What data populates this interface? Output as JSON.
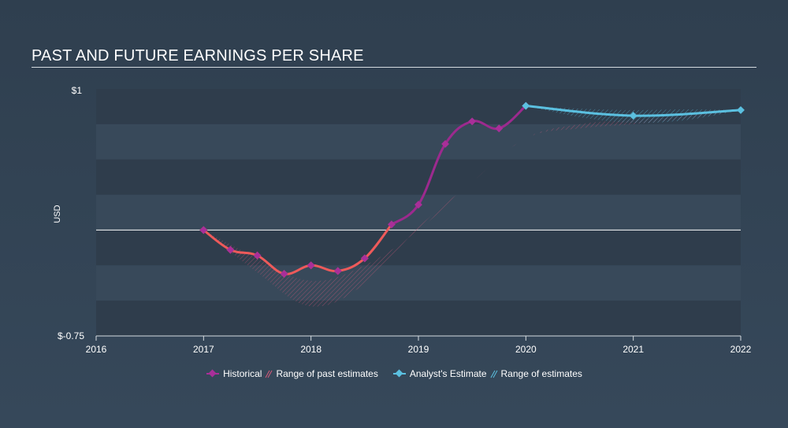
{
  "title": "PAST AND FUTURE EARNINGS PER SHARE",
  "legend": {
    "historical": "Historical",
    "past_range": "Range of past estimates",
    "analyst": "Analyst's Estimate",
    "future_range": "Range of estimates"
  },
  "colors": {
    "historical_line": "#9c2a8e",
    "historical_negative": "#ee5a5a",
    "historical_marker": "#a92f99",
    "analyst": "#5bc0e0",
    "band_dark": "#2f3d4c",
    "band_light": "#38495a"
  },
  "chart_data": {
    "type": "line",
    "ylabel": "USD",
    "y_tick_labels": [
      "$1",
      "$-0.75"
    ],
    "x_tick_labels": [
      "2016",
      "2017",
      "2018",
      "2019",
      "2020",
      "2021",
      "2022"
    ],
    "xlim": [
      2016,
      2022
    ],
    "ylim": [
      -0.75,
      1
    ],
    "series": [
      {
        "name": "Historical",
        "x": [
          2017.0,
          2017.25,
          2017.5,
          2017.75,
          2018.0,
          2018.25,
          2018.5,
          2018.75,
          2019.0,
          2019.25,
          2019.5,
          2019.75,
          2020.0
        ],
        "y": [
          0.0,
          -0.14,
          -0.18,
          -0.31,
          -0.25,
          -0.29,
          -0.2,
          0.04,
          0.18,
          0.61,
          0.77,
          0.72,
          0.88
        ]
      },
      {
        "name": "Analyst's Estimate",
        "x": [
          2020.0,
          2021.0,
          2022.0
        ],
        "y": [
          0.88,
          0.81,
          0.85
        ]
      }
    ],
    "past_range_upper": {
      "x": [
        2017.0,
        2017.5,
        2018.0,
        2018.5,
        2019.0,
        2019.5,
        2020.0,
        2020.5,
        2021.0,
        2021.5,
        2022.0
      ],
      "y": [
        0.0,
        -0.2,
        -0.36,
        -0.25,
        0.0,
        0.34,
        0.65,
        0.75,
        0.78,
        0.81,
        0.85
      ]
    },
    "past_range_lower": {
      "x": [
        2017.0,
        2017.5,
        2018.0,
        2018.5,
        2019.0,
        2019.5,
        2020.0,
        2020.5,
        2021.0,
        2021.5,
        2022.0
      ],
      "y": [
        0.0,
        -0.3,
        -0.54,
        -0.38,
        0.02,
        0.34,
        0.65,
        0.72,
        0.75,
        0.79,
        0.85
      ]
    },
    "future_range_upper": {
      "x": [
        2020.0,
        2020.5,
        2021.0,
        2021.5,
        2022.0
      ],
      "y": [
        0.88,
        0.86,
        0.85,
        0.855,
        0.85
      ]
    },
    "future_range_lower": {
      "x": [
        2020.0,
        2020.5,
        2021.0,
        2021.5,
        2022.0
      ],
      "y": [
        0.88,
        0.8,
        0.76,
        0.78,
        0.85
      ]
    },
    "grid": true,
    "legend_position": "bottom"
  }
}
